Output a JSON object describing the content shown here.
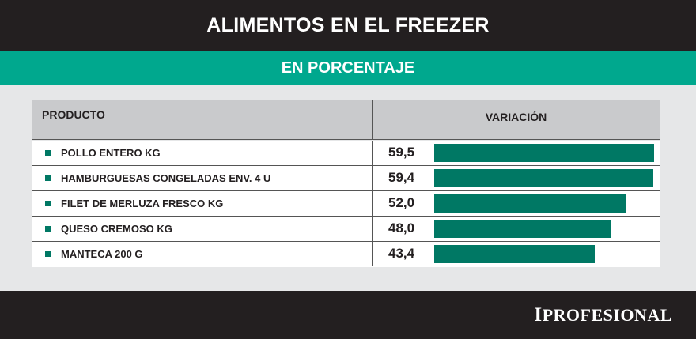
{
  "header": {
    "title": "ALIMENTOS EN EL FREEZER",
    "subtitle": "EN PORCENTAJE"
  },
  "table": {
    "col_product": "PRODUCTO",
    "col_variation": "VARIACIÓN"
  },
  "brand": {
    "first": "I",
    "rest": "PROFESIONAL"
  },
  "colors": {
    "bar": "#007864",
    "accent": "#00a88e",
    "dark": "#231f20"
  },
  "chart_data": {
    "type": "bar",
    "title": "ALIMENTOS EN EL FREEZER",
    "subtitle": "EN PORCENTAJE",
    "categories": [
      "POLLO ENTERO KG",
      "HAMBURGUESAS CONGELADAS ENV. 4 U",
      "FILET DE MERLUZA FRESCO KG",
      "QUESO CREMOSO KG",
      "MANTECA 200 G"
    ],
    "values": [
      59.5,
      59.4,
      52.0,
      48.0,
      43.4
    ],
    "value_labels": [
      "59,5",
      "59,4",
      "52,0",
      "48,0",
      "43,4"
    ],
    "orientation": "horizontal",
    "grid": false
  }
}
